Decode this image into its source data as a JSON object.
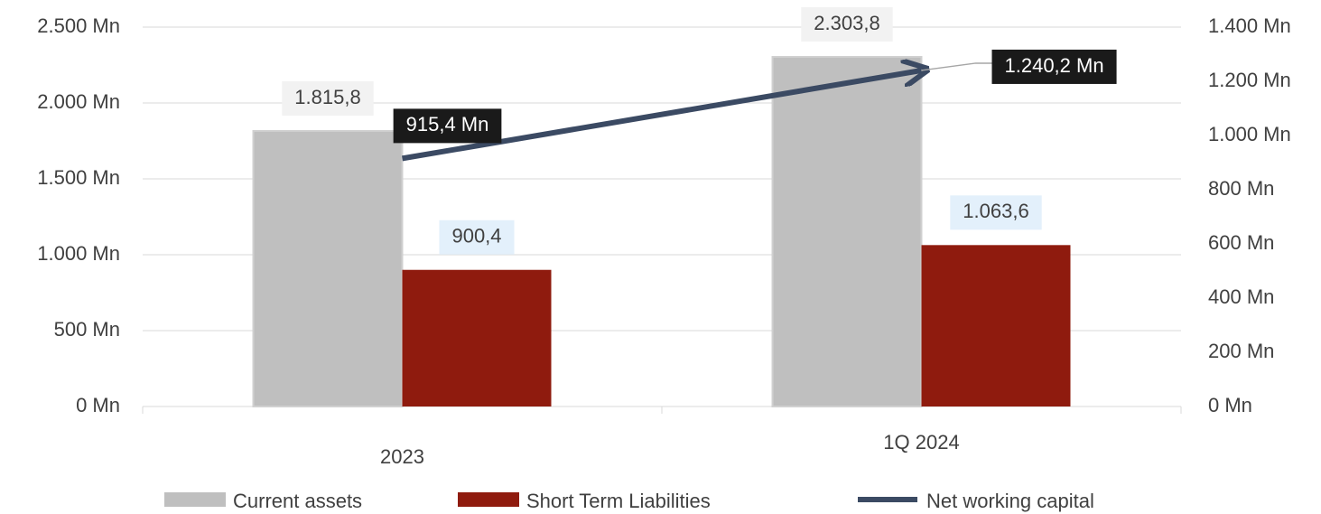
{
  "chart_data": {
    "type": "bar",
    "categories": [
      "2023",
      "1Q 2024"
    ],
    "series": [
      {
        "name": "Current assets",
        "color": "#bfbfbf",
        "values": [
          1815.8,
          2303.8
        ],
        "value_labels": [
          "1.815,8",
          "2.303,8"
        ]
      },
      {
        "name": "Short Term Liabilities",
        "color": "#8f1b0e",
        "values": [
          900.4,
          1063.6
        ],
        "value_labels": [
          "900,4",
          "1.063,6"
        ]
      },
      {
        "name": "Net working capital",
        "type": "line",
        "axis": "y2",
        "color": "#3b4a63",
        "values": [
          915.4,
          1240.2
        ],
        "value_labels": [
          "915,4 Mn",
          "1.240,2 Mn"
        ]
      }
    ],
    "ylim": [
      0,
      2500
    ],
    "yticks": [
      {
        "value": 0,
        "label": "0 Mn"
      },
      {
        "value": 500,
        "label": "500 Mn"
      },
      {
        "value": 1000,
        "label": "1.000 Mn"
      },
      {
        "value": 1500,
        "label": "1.500 Mn"
      },
      {
        "value": 2000,
        "label": "2.000 Mn"
      },
      {
        "value": 2500,
        "label": "2.500 Mn"
      }
    ],
    "y2lim": [
      0,
      1400
    ],
    "y2ticks": [
      {
        "value": 0,
        "label": "0 Mn"
      },
      {
        "value": 200,
        "label": "200 Mn"
      },
      {
        "value": 400,
        "label": "400 Mn"
      },
      {
        "value": 600,
        "label": "600 Mn"
      },
      {
        "value": 800,
        "label": "800 Mn"
      },
      {
        "value": 1000,
        "label": "1.000 Mn"
      },
      {
        "value": 1200,
        "label": "1.200 Mn"
      },
      {
        "value": 1400,
        "label": "1.400 Mn"
      }
    ],
    "grid": true,
    "legend": "bottom"
  }
}
